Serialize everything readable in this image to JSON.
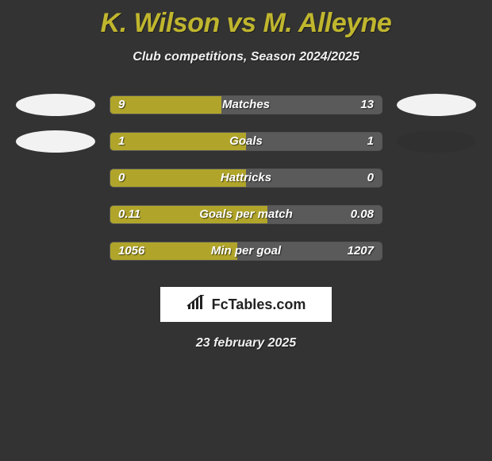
{
  "title": "K. Wilson vs M. Alleyne",
  "subtitle": "Club competitions, Season 2024/2025",
  "date": "23 february 2025",
  "logo_text": "FcTables.com",
  "colors": {
    "background": "#333333",
    "title": "#c0b62e",
    "bar_fill": "#b0a52a",
    "bar_bg": "#5a5a5a",
    "ellipse_white": "#f2f2f2",
    "ellipse_dark": "#303030",
    "text_white": "#ffffff"
  },
  "rows": [
    {
      "label": "Matches",
      "left_value": "9",
      "right_value": "13",
      "fill_ratio": 0.409,
      "left_ellipse_color": "#f2f2f2",
      "right_ellipse_color": "#f2f2f2",
      "show_ellipses": true
    },
    {
      "label": "Goals",
      "left_value": "1",
      "right_value": "1",
      "fill_ratio": 0.5,
      "left_ellipse_color": "#f2f2f2",
      "right_ellipse_color": "#303030",
      "show_ellipses": true
    },
    {
      "label": "Hattricks",
      "left_value": "0",
      "right_value": "0",
      "fill_ratio": 0.5,
      "show_ellipses": false
    },
    {
      "label": "Goals per match",
      "left_value": "0.11",
      "right_value": "0.08",
      "fill_ratio": 0.58,
      "show_ellipses": false
    },
    {
      "label": "Min per goal",
      "left_value": "1056",
      "right_value": "1207",
      "fill_ratio": 0.467,
      "show_ellipses": false
    }
  ]
}
